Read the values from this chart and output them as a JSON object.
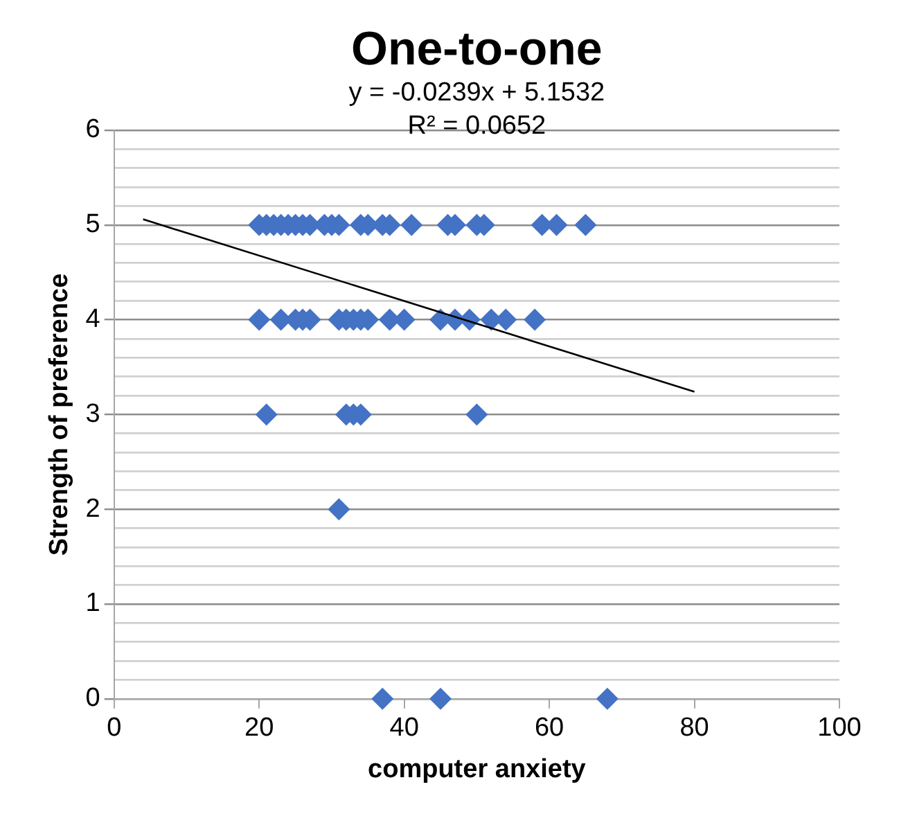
{
  "chart_data": {
    "type": "scatter",
    "title": "One-to-one",
    "xlabel": "computer anxiety",
    "ylabel": "Strength of preference",
    "annotations": [
      "y = -0.0239x + 5.1532",
      "R² = 0.0652"
    ],
    "series": [
      {
        "type": "scatter",
        "color": "#4472c4",
        "marker": "diamond",
        "x": [
          20,
          21,
          22,
          23,
          24,
          25,
          26,
          27,
          29,
          30,
          31,
          34,
          35,
          37,
          38,
          41,
          46,
          47,
          50,
          51,
          59,
          61,
          65,
          20,
          23,
          25,
          26,
          27,
          31,
          32,
          33,
          34,
          35,
          38,
          40,
          45,
          47,
          49,
          52,
          54,
          58,
          21,
          32,
          33,
          34,
          50,
          31,
          37,
          45,
          68
        ],
        "values": [
          5,
          5,
          5,
          5,
          5,
          5,
          5,
          5,
          5,
          5,
          5,
          5,
          5,
          5,
          5,
          5,
          5,
          5,
          5,
          5,
          5,
          5,
          5,
          4,
          4,
          4,
          4,
          4,
          4,
          4,
          4,
          4,
          4,
          4,
          4,
          4,
          4,
          4,
          4,
          4,
          4,
          3,
          3,
          3,
          3,
          3,
          2,
          0,
          0,
          0
        ]
      },
      {
        "type": "line",
        "color": "#000000",
        "marker": "none",
        "x": [
          4,
          80
        ],
        "values": [
          5.06,
          3.24
        ]
      }
    ],
    "xlim": [
      0,
      100
    ],
    "xticks": [
      0,
      20,
      40,
      60,
      80,
      100
    ],
    "ylim": [
      0,
      6
    ],
    "yticks": [
      0,
      {
        "value": 0.2,
        "label": null
      },
      {
        "value": 0.4,
        "label": null
      },
      {
        "value": 0.6,
        "label": null
      },
      {
        "value": 0.8,
        "label": null
      },
      1,
      {
        "value": 1.2,
        "label": null
      },
      {
        "value": 1.4,
        "label": null
      },
      {
        "value": 1.6,
        "label": null
      },
      {
        "value": 1.8,
        "label": null
      },
      2,
      {
        "value": 2.2,
        "label": null
      },
      {
        "value": 2.4,
        "label": null
      },
      {
        "value": 2.6,
        "label": null
      },
      {
        "value": 2.8,
        "label": null
      },
      3,
      {
        "value": 3.2,
        "label": null
      },
      {
        "value": 3.4,
        "label": null
      },
      {
        "value": 3.6,
        "label": null
      },
      {
        "value": 3.8,
        "label": null
      },
      4,
      {
        "value": 4.2,
        "label": null
      },
      {
        "value": 4.4,
        "label": null
      },
      {
        "value": 4.6,
        "label": null
      },
      {
        "value": 4.8,
        "label": null
      },
      5,
      {
        "value": 5.2,
        "label": null
      },
      {
        "value": 5.4,
        "label": null
      },
      {
        "value": 5.6,
        "label": null
      },
      {
        "value": 5.8,
        "label": null
      },
      6
    ],
    "grid": "y",
    "legend": false
  }
}
